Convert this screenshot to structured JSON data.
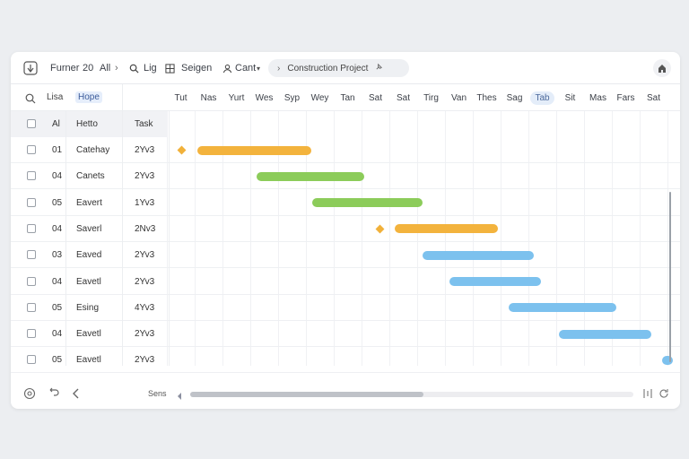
{
  "toolbar": {
    "app_icon": "app-logo-icon",
    "menu1": "Furner",
    "menu1_num": "20",
    "menu1_all": "All",
    "menu2": "Lig",
    "menu3": "Seigen",
    "menu4": "Cant",
    "project_name": "Construction Project",
    "user_icon": "home-icon"
  },
  "header": {
    "tab1": "Lisa",
    "tab2": "Hope",
    "days": [
      "Tut",
      "Nas",
      "Yurt",
      "Wes",
      "Syp",
      "Wey",
      "Tan",
      "Sat",
      "Sat",
      "Tirg",
      "Van",
      "Thes",
      "Sag",
      "Tab",
      "Sit",
      "Mas",
      "Fars",
      "Sat"
    ]
  },
  "table": {
    "head": {
      "id": "Al",
      "name": "Hetto",
      "task": "Task"
    },
    "rows": [
      {
        "id": "01",
        "name": "Catehay",
        "task": "2Yv3"
      },
      {
        "id": "04",
        "name": "Canets",
        "task": "2Yv3"
      },
      {
        "id": "05",
        "name": "Eavert",
        "task": "1Yv3"
      },
      {
        "id": "04",
        "name": "Saverl",
        "task": "2Nv3"
      },
      {
        "id": "03",
        "name": "Eaved",
        "task": "2Yv3"
      },
      {
        "id": "04",
        "name": "Eavetl",
        "task": "2Yv3"
      },
      {
        "id": "05",
        "name": "Esing",
        "task": "4Yv3"
      },
      {
        "id": "04",
        "name": "Eavetl",
        "task": "2Yv3"
      },
      {
        "id": "05",
        "name": "Eavetl",
        "task": "2Yv3"
      }
    ]
  },
  "gantt": {
    "colors": {
      "orange": "#f3b33d",
      "green": "#8ccc5a",
      "blue": "#7cc1ee"
    },
    "bars": [
      {
        "row": 0,
        "color": "orange",
        "milestone": true
      },
      {
        "row": 1,
        "color": "green"
      },
      {
        "row": 2,
        "color": "green"
      },
      {
        "row": 3,
        "color": "orange",
        "milestone": true
      },
      {
        "row": 4,
        "color": "blue"
      },
      {
        "row": 5,
        "color": "blue"
      },
      {
        "row": 6,
        "color": "blue"
      },
      {
        "row": 7,
        "color": "blue"
      },
      {
        "row": 8,
        "color": "blue"
      }
    ]
  },
  "footer": {
    "label": "Sens",
    "icons": [
      "settings-icon",
      "undo-icon",
      "back-icon",
      "scroll-left-icon",
      "columns-icon",
      "refresh-icon"
    ]
  }
}
